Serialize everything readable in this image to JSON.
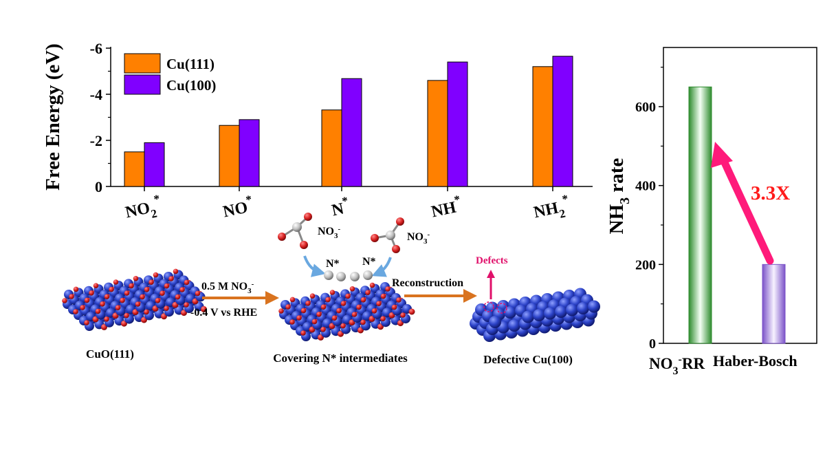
{
  "chart_data": [
    {
      "type": "bar",
      "title": "",
      "xlabel": "",
      "ylabel": "Free Energy (eV)",
      "ylim": [
        0,
        -6
      ],
      "yticks": [
        "0",
        "-2",
        "-4",
        "-6"
      ],
      "categories": [
        {
          "base": "NO",
          "sub": "2",
          "sup": "*"
        },
        {
          "base": "NO",
          "sub": "",
          "sup": "*"
        },
        {
          "base": "N",
          "sub": "",
          "sup": "*"
        },
        {
          "base": "NH",
          "sub": "",
          "sup": "*"
        },
        {
          "base": "NH",
          "sub": "2",
          "sup": "*"
        }
      ],
      "series": [
        {
          "name": "Cu(111)",
          "color": "#ff8000",
          "values": [
            -1.5,
            -2.65,
            -3.32,
            -4.6,
            -5.2
          ]
        },
        {
          "name": "Cu(100)",
          "color": "#8000ff",
          "values": [
            -1.9,
            -2.9,
            -4.68,
            -5.4,
            -5.65
          ]
        }
      ],
      "legend": "top-left"
    },
    {
      "type": "bar",
      "title": "",
      "ylabel": {
        "base": "NH",
        "sub": "3",
        "rest": " rate"
      },
      "ylim": [
        0,
        750
      ],
      "yticks": [
        "0",
        "200",
        "400",
        "600"
      ],
      "categories": [
        {
          "base": "NO",
          "sub": "3",
          "sup": "-",
          "rest": "RR"
        },
        {
          "base": "Haber-Bosch",
          "sub": "",
          "sup": "",
          "rest": ""
        }
      ],
      "values": [
        650,
        200
      ],
      "colors": [
        "#2e8b2e",
        "#7b52c8"
      ],
      "annotation": {
        "text": "3.3X",
        "color": "#ff1a1a",
        "arrow_color": "#ff1a7a"
      }
    }
  ],
  "schematic": {
    "left_catalyst_label": "CuO(111)",
    "step1_line1_base": "0.5 M NO",
    "step1_line1_sub": "3",
    "step1_line1_sup": "-",
    "step1_line2": "-0.4 V vs RHE",
    "middle_label": "Covering N* intermediates",
    "nitrate_label_base": "NO",
    "nitrate_label_sub": "3",
    "nitrate_label_sup": "-",
    "adsorbate_label": "N*",
    "step2_label": "Reconstruction",
    "defects_label": "Defects",
    "right_catalyst_label": "Defective Cu(100)",
    "colors": {
      "cu": "#2c43c8",
      "o": "#d61f1f",
      "n": "#bfbfbf",
      "arrow": "#d9731f",
      "curve_arrow": "#6aa8e0",
      "defect": "#e0106a"
    }
  }
}
